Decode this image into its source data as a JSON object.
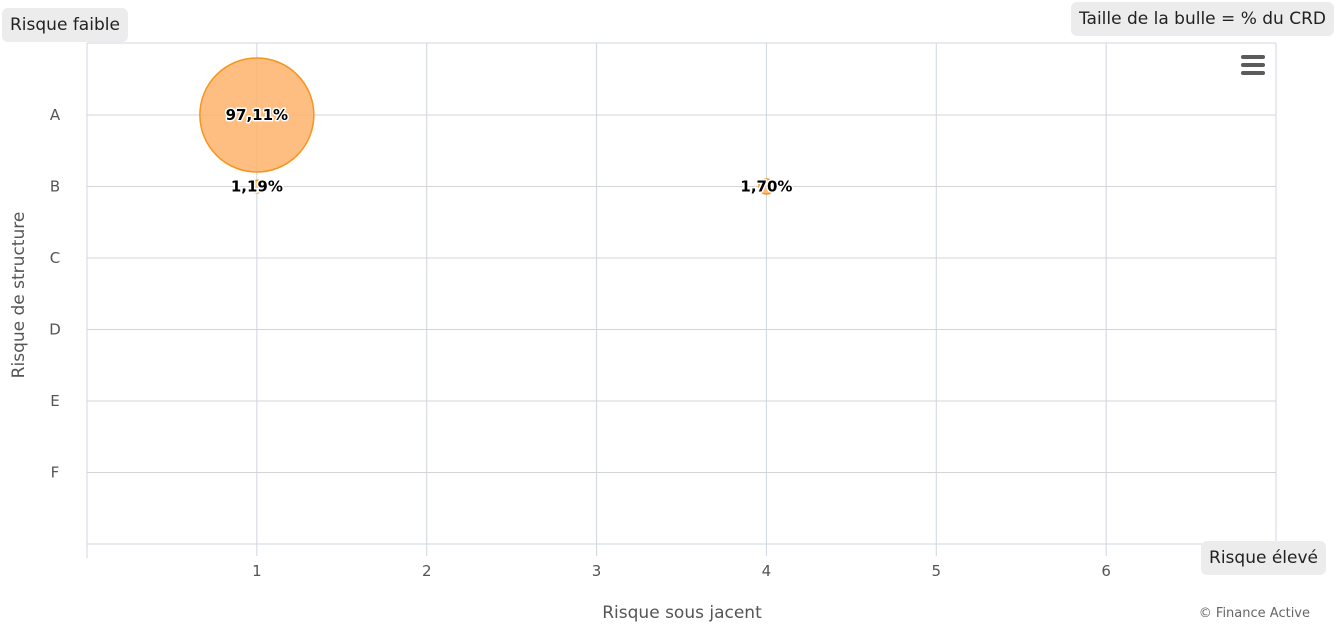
{
  "labels": {
    "low_risk": "Risque faible",
    "high_risk": "Risque élevé",
    "bubble_size": "Taille de la bulle = % du CRD",
    "credits": "© Finance Active"
  },
  "icons": {
    "menu": "hamburger-menu-icon"
  },
  "colors": {
    "bubble_fill": "#ffb36b",
    "bubble_stroke": "#f7941d",
    "grid": "#cfd6de",
    "axis_text": "#555555"
  },
  "chart_data": {
    "type": "bubble",
    "xlabel": "Risque sous jacent",
    "ylabel": "Risque de structure",
    "x_ticks": [
      "1",
      "2",
      "3",
      "4",
      "5",
      "6"
    ],
    "y_categories": [
      "A",
      "B",
      "C",
      "D",
      "E",
      "F"
    ],
    "xlim": [
      0,
      7
    ],
    "grid": true,
    "points": [
      {
        "x": 1,
        "y": "A",
        "size": 97.11,
        "label": "97,11%"
      },
      {
        "x": 1,
        "y": "B",
        "size": 1.19,
        "label": "1,19%"
      },
      {
        "x": 4,
        "y": "B",
        "size": 1.7,
        "label": "1,70%"
      }
    ]
  }
}
